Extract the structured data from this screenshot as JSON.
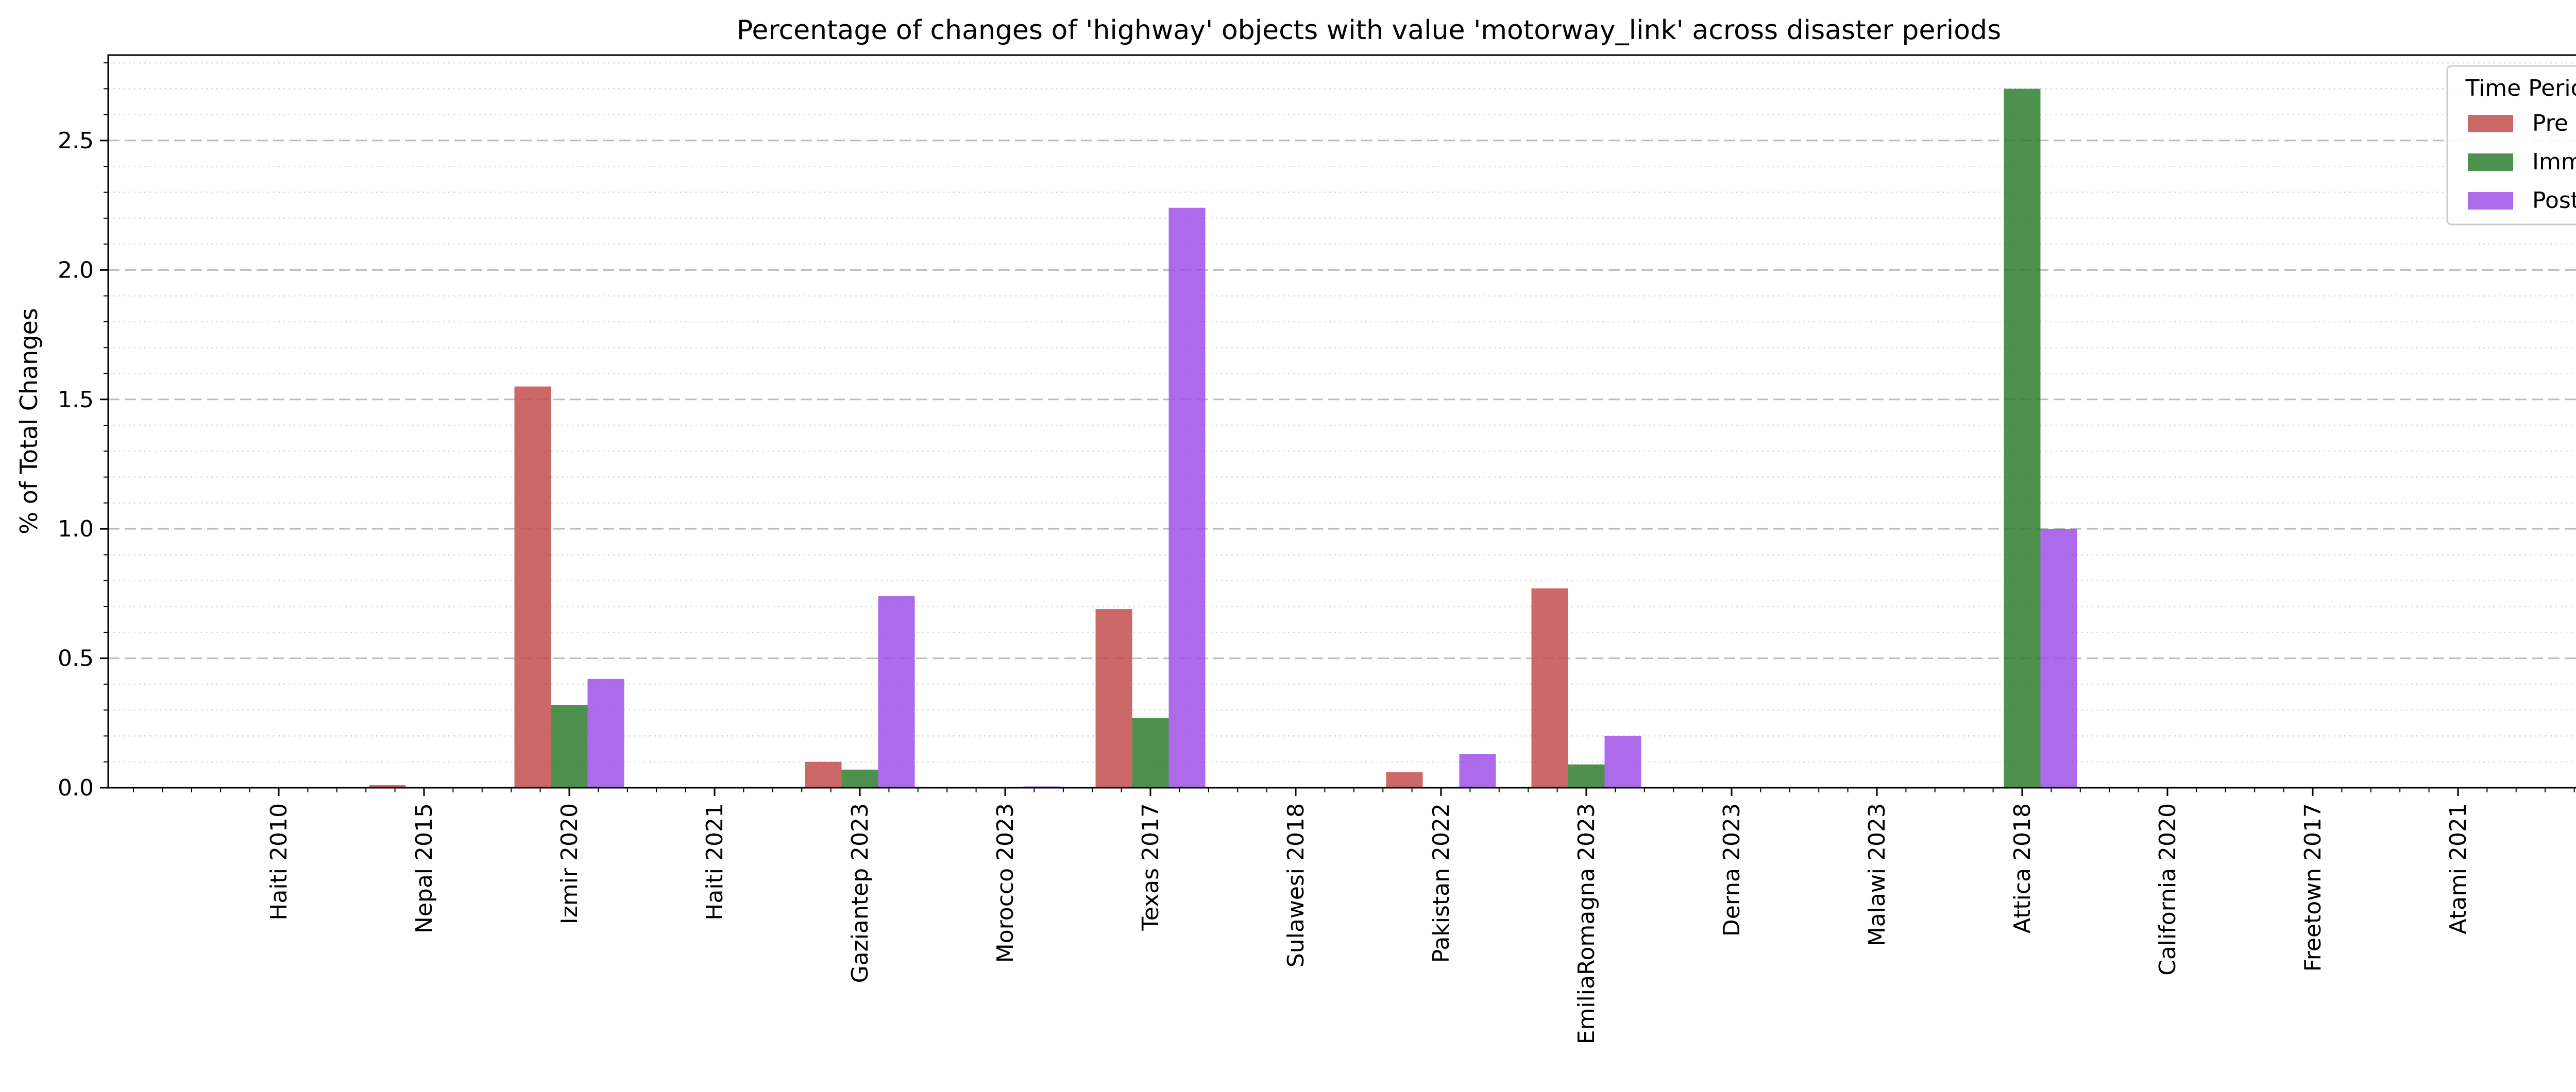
{
  "chart_data": {
    "type": "bar",
    "title": "Percentage of changes of 'highway' objects with value 'motorway_link' across disaster periods",
    "xlabel": "",
    "ylabel": "% of Total Changes",
    "ylim": [
      0,
      2.83
    ],
    "yticks": [
      "0.0",
      "0.5",
      "1.0",
      "1.5",
      "2.0",
      "2.5"
    ],
    "grid": {
      "major": "dashed",
      "minor": "dotted"
    },
    "categories": [
      "Haiti 2010",
      "Nepal 2015",
      "Izmir 2020",
      "Haiti 2021",
      "Gaziantep 2023",
      "Morocco 2023",
      "Texas 2017",
      "Sulawesi 2018",
      "Pakistan 2022",
      "EmiliaRomagna 2023",
      "Derna 2023",
      "Malawi 2023",
      "Attica 2018",
      "California 2020",
      "Freetown 2017",
      "Atami 2021"
    ],
    "series": [
      {
        "name": "Pre",
        "color": "#c44e4e",
        "values": [
          0,
          0.01,
          1.55,
          0,
          0.1,
          0,
          0.69,
          0,
          0.06,
          0.77,
          0,
          0,
          0,
          0,
          0,
          0
        ]
      },
      {
        "name": "Imm",
        "color": "#2f7d2f",
        "values": [
          0,
          0,
          0.32,
          0,
          0.07,
          0,
          0.27,
          0,
          0,
          0.09,
          0,
          0,
          2.7,
          0,
          0,
          0
        ]
      },
      {
        "name": "Post",
        "color": "#9f50e8",
        "values": [
          0,
          0,
          0.42,
          0,
          0.74,
          0.005,
          2.24,
          0,
          0.13,
          0.2,
          0,
          0,
          1.0,
          0,
          0,
          0
        ]
      }
    ],
    "legend": {
      "title": "Time Period",
      "placement": "top-right"
    }
  }
}
